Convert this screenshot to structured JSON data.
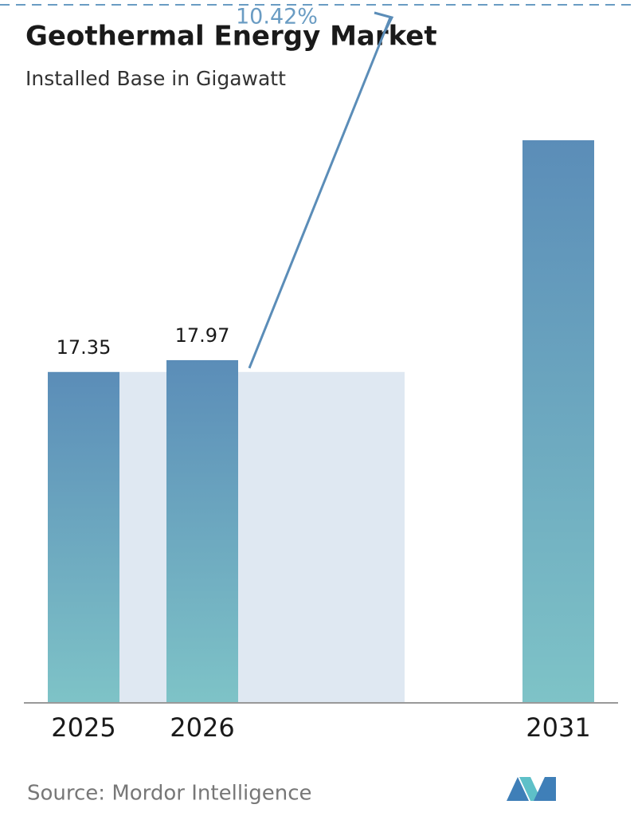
{
  "chart_data": {
    "type": "bar",
    "title": "Geothermal Energy Market",
    "subtitle": "Installed Base in Gigawatt",
    "categories": [
      "2025",
      "2026",
      "2031"
    ],
    "values": [
      17.35,
      17.97,
      29.5
    ],
    "value_labels": [
      "17.35",
      "17.97",
      null
    ],
    "color": "#5b8db8",
    "cagr": "10.42%",
    "source": "Source:  Mordor Intelligence"
  }
}
